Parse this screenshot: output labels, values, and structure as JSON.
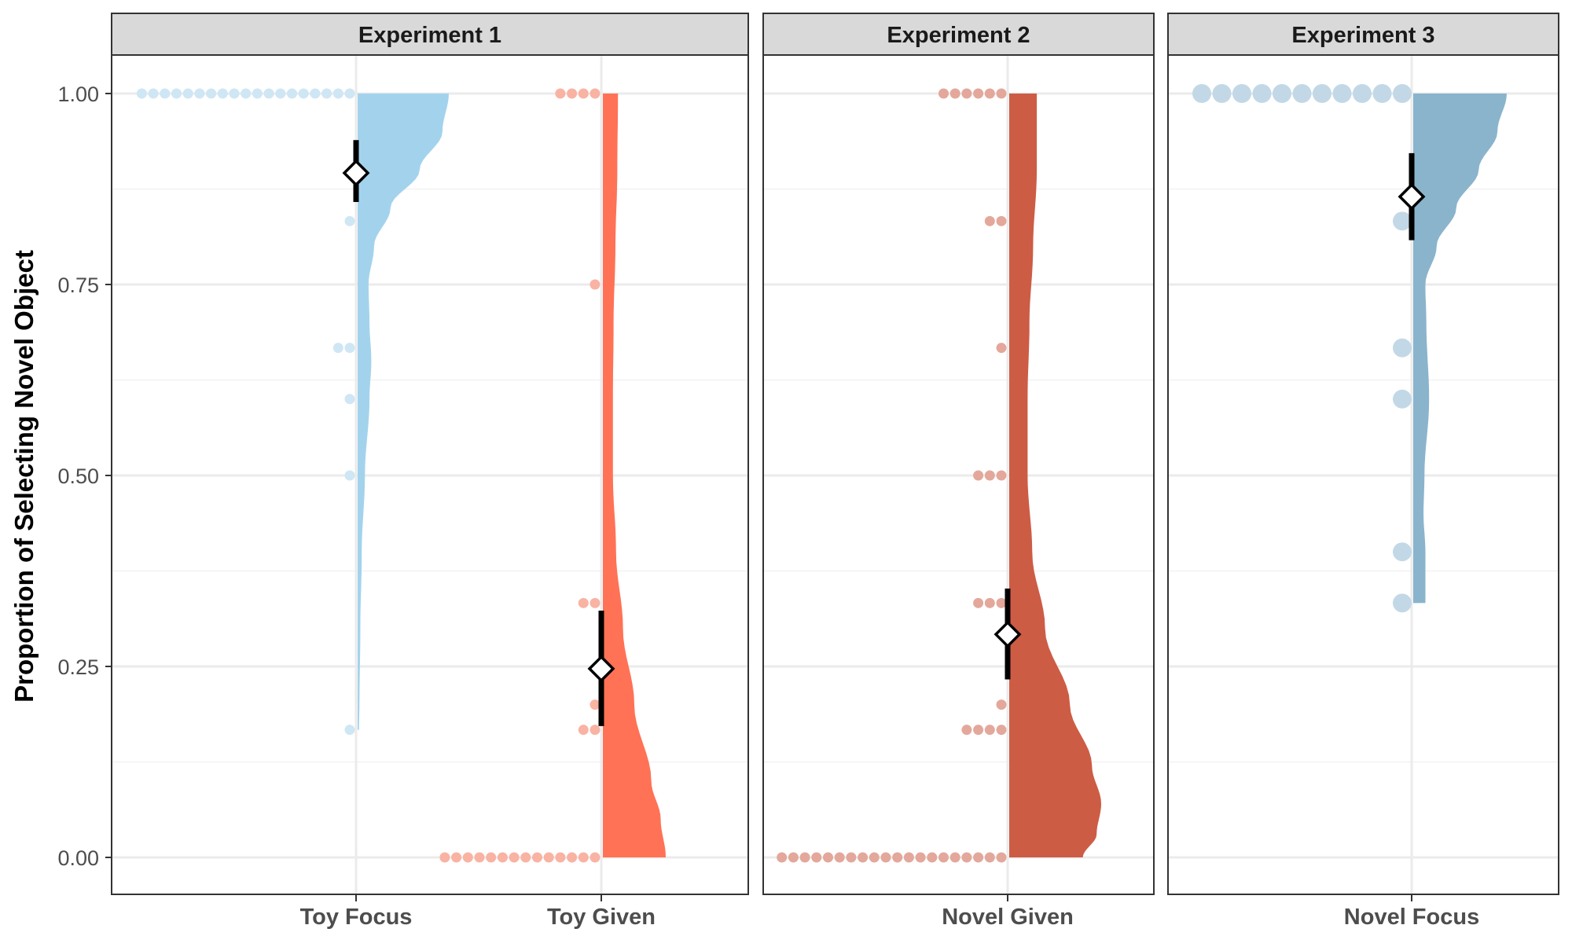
{
  "chart_data": {
    "type": "raincloud",
    "ylabel": "Proportion of Selecting Novel Object",
    "ylim": [
      -0.05,
      1.05
    ],
    "yticks": [
      0,
      0.25,
      0.5,
      0.75,
      1
    ],
    "ytick_labels": [
      "0.00",
      "0.25",
      "0.50",
      "0.75",
      "1.00"
    ],
    "grid": true,
    "panels": [
      {
        "title": "Experiment 1",
        "groups": [
          {
            "label": "Toy Focus",
            "color": "#a3d3ec",
            "dot_color": "#cfe6f5",
            "mean": 0.896,
            "ci": [
              0.858,
              0.939
            ],
            "points": [
              {
                "y": 1.0,
                "n": 19
              },
              {
                "y": 0.833,
                "n": 1
              },
              {
                "y": 0.667,
                "n": 2
              },
              {
                "y": 0.6,
                "n": 1
              },
              {
                "y": 0.5,
                "n": 1
              },
              {
                "y": 0.167,
                "n": 1
              }
            ],
            "density": [
              [
                0.167,
                0.015
              ],
              [
                0.2,
                0.02
              ],
              [
                0.3,
                0.03
              ],
              [
                0.4,
                0.045
              ],
              [
                0.5,
                0.08
              ],
              [
                0.6,
                0.13
              ],
              [
                0.65,
                0.15
              ],
              [
                0.7,
                0.13
              ],
              [
                0.75,
                0.12
              ],
              [
                0.8,
                0.18
              ],
              [
                0.85,
                0.36
              ],
              [
                0.9,
                0.68
              ],
              [
                0.95,
                0.93
              ],
              [
                1.0,
                1.0
              ]
            ]
          },
          {
            "label": "Toy Given",
            "color": "#ff7256",
            "dot_color": "#f9b3a3",
            "mean": 0.247,
            "ci": [
              0.172,
              0.323
            ],
            "points": [
              {
                "y": 1.0,
                "n": 4
              },
              {
                "y": 0.75,
                "n": 1
              },
              {
                "y": 0.333,
                "n": 2
              },
              {
                "y": 0.2,
                "n": 1
              },
              {
                "y": 0.167,
                "n": 2
              },
              {
                "y": 0.0,
                "n": 14
              }
            ],
            "density": [
              [
                0.0,
                1.0
              ],
              [
                0.05,
                0.92
              ],
              [
                0.1,
                0.77
              ],
              [
                0.2,
                0.5
              ],
              [
                0.3,
                0.32
              ],
              [
                0.4,
                0.21
              ],
              [
                0.5,
                0.16
              ],
              [
                0.6,
                0.16
              ],
              [
                0.7,
                0.17
              ],
              [
                0.8,
                0.2
              ],
              [
                0.9,
                0.23
              ],
              [
                1.0,
                0.24
              ]
            ]
          }
        ]
      },
      {
        "title": "Experiment 2",
        "groups": [
          {
            "label": "Novel Given",
            "color": "#cd5c45",
            "dot_color": "#e3a89b",
            "mean": 0.292,
            "ci": [
              0.233,
              0.352
            ],
            "points": [
              {
                "y": 1.0,
                "n": 6
              },
              {
                "y": 0.833,
                "n": 2
              },
              {
                "y": 0.667,
                "n": 1
              },
              {
                "y": 0.5,
                "n": 3
              },
              {
                "y": 0.333,
                "n": 3
              },
              {
                "y": 0.2,
                "n": 1
              },
              {
                "y": 0.167,
                "n": 4
              },
              {
                "y": 0.0,
                "n": 20
              }
            ],
            "density": [
              [
                0.0,
                0.8
              ],
              [
                0.03,
                0.95
              ],
              [
                0.07,
                1.0
              ],
              [
                0.12,
                0.9
              ],
              [
                0.2,
                0.66
              ],
              [
                0.3,
                0.39
              ],
              [
                0.4,
                0.25
              ],
              [
                0.5,
                0.2
              ],
              [
                0.6,
                0.2
              ],
              [
                0.7,
                0.22
              ],
              [
                0.8,
                0.26
              ],
              [
                0.9,
                0.3
              ],
              [
                1.0,
                0.3
              ]
            ]
          }
        ]
      },
      {
        "title": "Experiment 3",
        "groups": [
          {
            "label": "Novel Focus",
            "color": "#8ab4cc",
            "dot_color": "#c3d8e6",
            "mean": 0.865,
            "ci": [
              0.808,
              0.922
            ],
            "large_dots": true,
            "points": [
              {
                "y": 1.0,
                "n": 11
              },
              {
                "y": 0.833,
                "n": 1
              },
              {
                "y": 0.667,
                "n": 1
              },
              {
                "y": 0.6,
                "n": 1
              },
              {
                "y": 0.4,
                "n": 1
              },
              {
                "y": 0.333,
                "n": 1
              }
            ],
            "density": [
              [
                0.333,
                0.13
              ],
              [
                0.4,
                0.13
              ],
              [
                0.45,
                0.11
              ],
              [
                0.5,
                0.12
              ],
              [
                0.6,
                0.17
              ],
              [
                0.7,
                0.14
              ],
              [
                0.75,
                0.13
              ],
              [
                0.8,
                0.25
              ],
              [
                0.85,
                0.46
              ],
              [
                0.9,
                0.7
              ],
              [
                0.95,
                0.9
              ],
              [
                1.0,
                1.0
              ]
            ]
          }
        ]
      }
    ]
  }
}
